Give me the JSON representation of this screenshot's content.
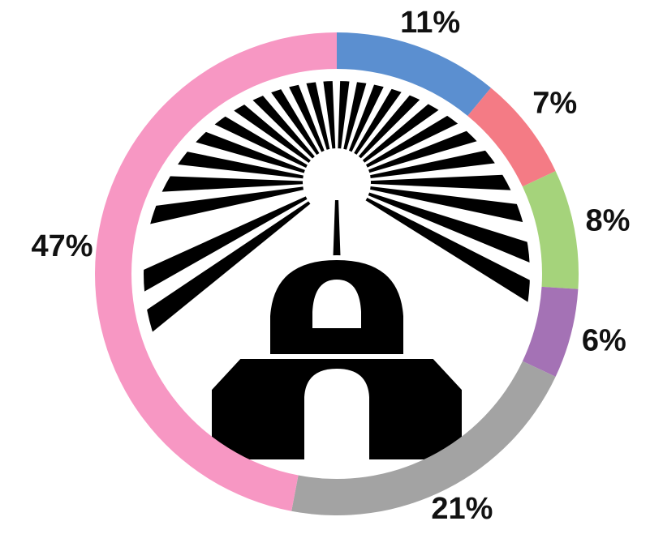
{
  "chart_data": {
    "type": "donut",
    "values": [
      11,
      7,
      8,
      6,
      21,
      47
    ],
    "value_labels": [
      "11%",
      "7%",
      "8%",
      "6%",
      "21%",
      "47%"
    ],
    "colors": [
      "#5b8fd0",
      "#f47b85",
      "#a5d37b",
      "#a472b5",
      "#a3a3a3",
      "#f797c3"
    ]
  }
}
